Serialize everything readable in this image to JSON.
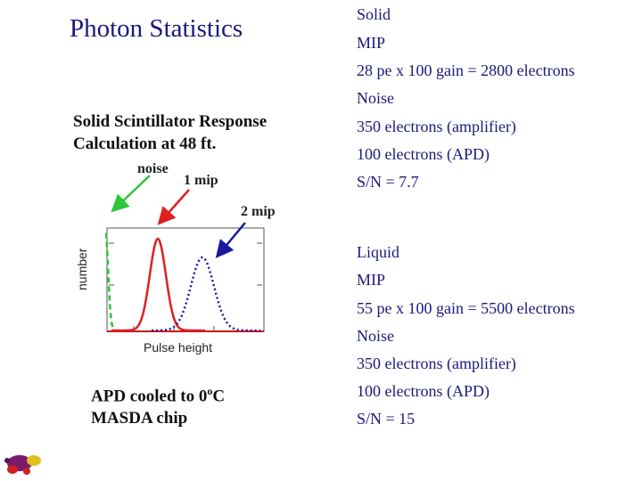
{
  "title": "Photon Statistics",
  "left": {
    "subtitle_line1": "Solid Scintillator Response",
    "subtitle_line2": "Calculation at 48 ft.",
    "noise_label": "noise",
    "mip1_label": "1 mip",
    "mip2_label": "2 mip",
    "note_line1_prefix": "APD cooled to 0",
    "note_line1_sup": "o",
    "note_line1_suffix": "C",
    "note_line2": "MASDA chip"
  },
  "chart_data": {
    "type": "line",
    "xlabel": "Pulse height",
    "ylabel": "number",
    "series": [
      {
        "name": "noise",
        "color": "#2fc43a",
        "style": "dashed"
      },
      {
        "name": "1 mip",
        "color": "#e02020",
        "style": "solid"
      },
      {
        "name": "2 mip",
        "color": "#1a1aa0",
        "style": "dotted"
      }
    ]
  },
  "right": {
    "solid": {
      "heading": "Solid",
      "mip": "MIP",
      "gain": "28 pe x 100 gain = 2800 electrons",
      "noise": "Noise",
      "amp": "350 electrons (amplifier)",
      "apd": "100 electrons (APD)",
      "sn": "S/N = 7.7"
    },
    "liquid": {
      "heading": "Liquid",
      "mip": "MIP",
      "gain": "55 pe x 100 gain = 5500 electrons",
      "noise": "Noise",
      "amp": "350 electrons (amplifier)",
      "apd": "100 electrons (APD)",
      "sn": "S/N = 15"
    }
  },
  "colors": {
    "title": "#1a1a7a",
    "red": "#d01010",
    "green": "#2fc43a",
    "blue": "#1a1aa0"
  }
}
